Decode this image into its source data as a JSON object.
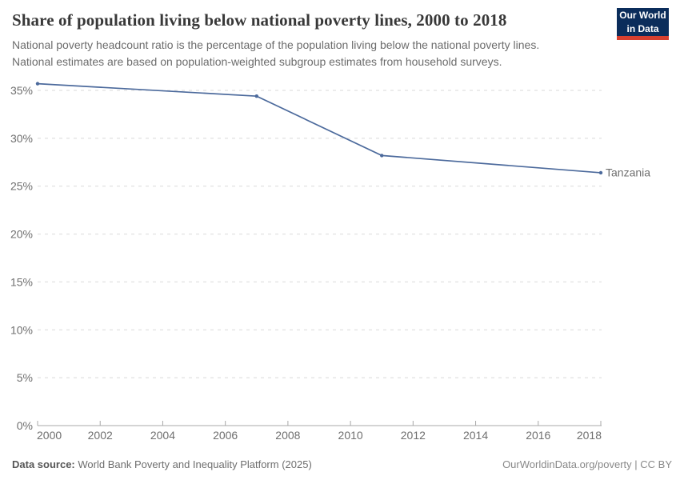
{
  "header": {
    "title": "Share of population living below national poverty lines, 2000 to 2018",
    "subtitle_line1": "National poverty headcount ratio is the percentage of the population living below the national poverty lines.",
    "subtitle_line2": "National estimates are based on population-weighted subgroup estimates from household surveys.",
    "logo_line1": "Our World",
    "logo_line2": "in Data"
  },
  "chart_data": {
    "type": "line",
    "title": "Share of population living below national poverty lines, 2000 to 2018",
    "xlabel": "",
    "ylabel": "",
    "xlim": [
      2000,
      2018
    ],
    "ylim": [
      0,
      37
    ],
    "x_ticks": [
      2000,
      2002,
      2004,
      2006,
      2008,
      2010,
      2012,
      2014,
      2016,
      2018
    ],
    "y_ticks": [
      0,
      5,
      10,
      15,
      20,
      25,
      30,
      35
    ],
    "y_tick_suffix": "%",
    "grid": "horizontal-dashed",
    "legend_position": "end-of-line",
    "series": [
      {
        "name": "Tanzania",
        "color": "#4c6a9c",
        "x": [
          2000,
          2007,
          2011,
          2018
        ],
        "values": [
          35.7,
          34.4,
          28.2,
          26.4
        ]
      }
    ]
  },
  "footer": {
    "source_label": "Data source:",
    "source_text": "World Bank Poverty and Inequality Platform (2025)",
    "attribution": "OurWorldinData.org/poverty | CC BY"
  },
  "colors": {
    "line": "#4c6a9c",
    "gridline": "#d9d9d9",
    "axis": "#a8a8a8",
    "tick_label": "#6f6f6f",
    "logo_bg": "#0b2d5b",
    "logo_stripe": "#d8402f"
  }
}
